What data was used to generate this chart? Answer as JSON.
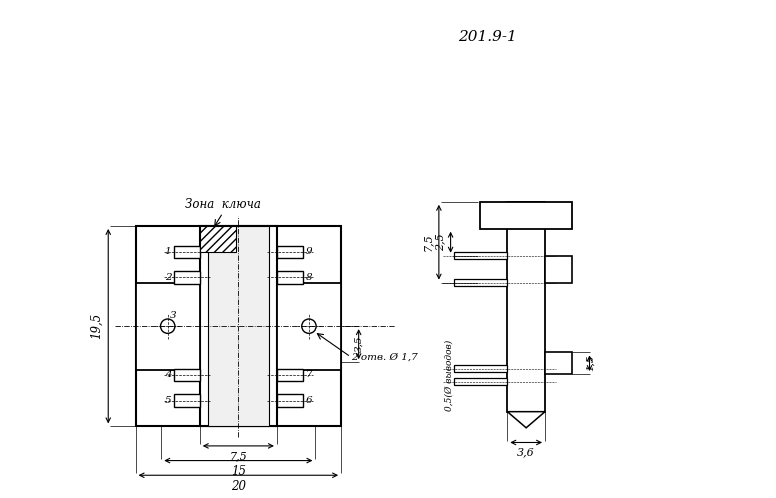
{
  "title": "201.9-1",
  "bg_color": "#ffffff",
  "line_color": "#000000",
  "left": {
    "note_zona": "Зона  ключа",
    "note_otv": "2 отв. Ø 1,7",
    "dim_195": "19,5",
    "dim_75": "7,5",
    "dim_15": "15",
    "dim_20": "20",
    "dim_35": "3,5",
    "pins_left": [
      "1",
      "2",
      "3",
      "4",
      "5"
    ],
    "pins_right": [
      "9",
      "8",
      "7",
      "6"
    ]
  },
  "right": {
    "dim_75": "7,5",
    "dim_25": "2,5",
    "dim_15": "1,5",
    "dim_36": "3,6",
    "dim_05": "0,5(Ø выводов)"
  }
}
